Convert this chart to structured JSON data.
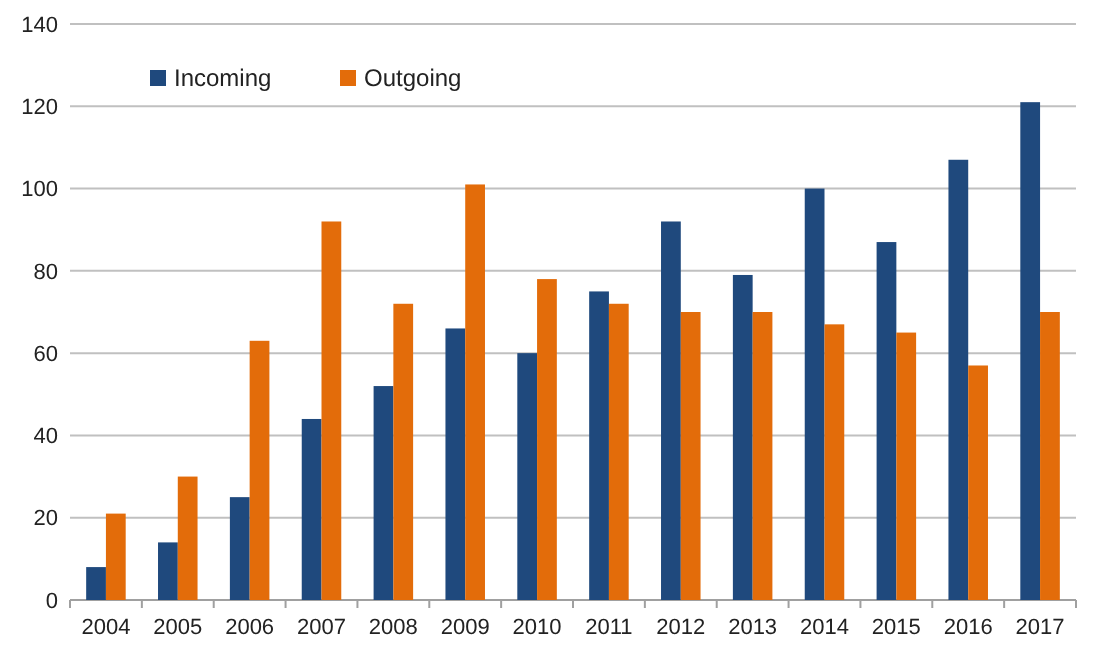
{
  "chart_data": {
    "type": "bar",
    "categories": [
      "2004",
      "2005",
      "2006",
      "2007",
      "2008",
      "2009",
      "2010",
      "2011",
      "2012",
      "2013",
      "2014",
      "2015",
      "2016",
      "2017"
    ],
    "series": [
      {
        "name": "Incoming",
        "color": "#1f497d",
        "values": [
          8,
          14,
          25,
          44,
          52,
          66,
          60,
          75,
          92,
          79,
          100,
          87,
          107,
          121
        ]
      },
      {
        "name": "Outgoing",
        "color": "#e36c0a",
        "values": [
          21,
          30,
          63,
          92,
          72,
          101,
          78,
          72,
          70,
          70,
          67,
          65,
          57,
          70
        ]
      }
    ],
    "ylim": [
      0,
      140
    ],
    "yticks": [
      0,
      20,
      40,
      60,
      80,
      100,
      120,
      140
    ],
    "grid": "y",
    "legend": "top left"
  }
}
